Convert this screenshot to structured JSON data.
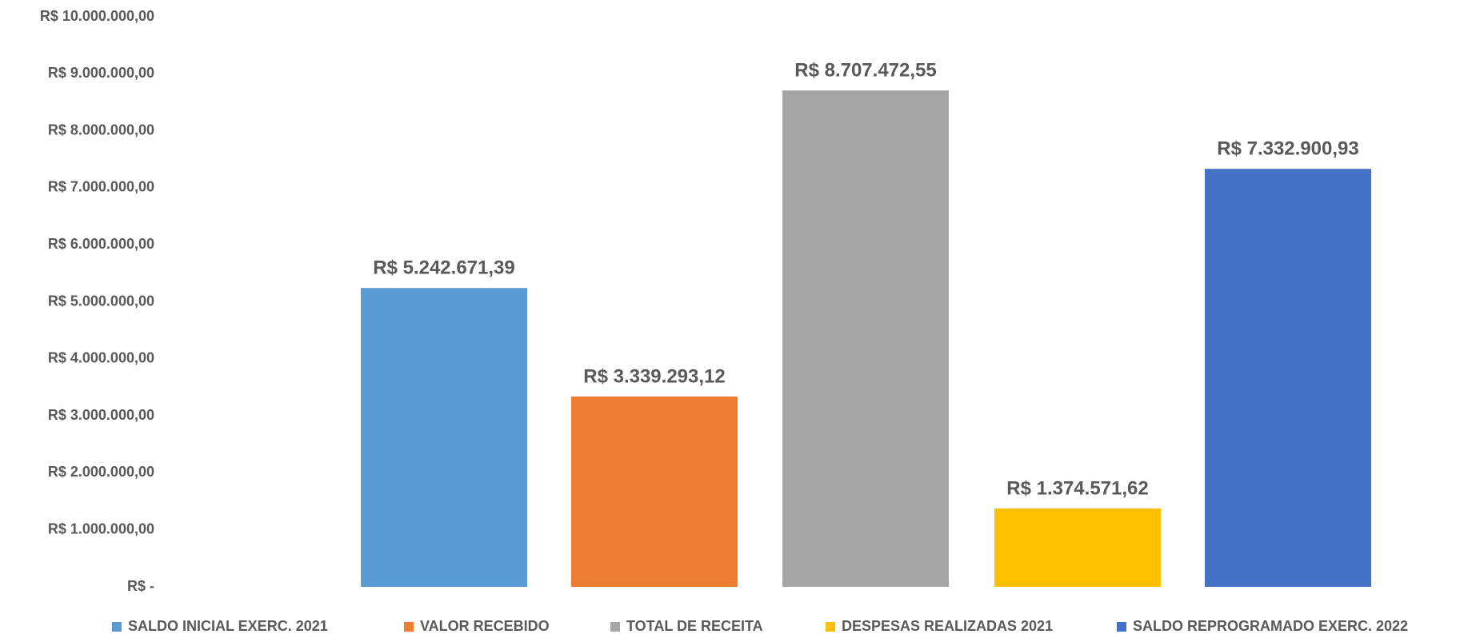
{
  "chart_data": {
    "type": "bar",
    "series": [
      {
        "name": "SALDO INICIAL EXERC. 2021",
        "color": "#5b9bd5",
        "values": [
          5242671.39
        ],
        "value_labels": [
          "R$ 5.242.671,39"
        ]
      },
      {
        "name": "VALOR RECEBIDO",
        "color": "#ed7d31",
        "values": [
          3339293.12
        ],
        "value_labels": [
          "R$ 3.339.293,12"
        ]
      },
      {
        "name": "TOTAL DE RECEITA",
        "color": "#a5a5a5",
        "values": [
          8707472.55
        ],
        "value_labels": [
          "R$ 8.707.472,55"
        ]
      },
      {
        "name": "DESPESAS REALIZADAS 2021",
        "color": "#ffc000",
        "values": [
          1374571.62
        ],
        "value_labels": [
          "R$ 1.374.571,62"
        ]
      },
      {
        "name": "SALDO REPROGRAMADO EXERC. 2022",
        "color": "#4472c4",
        "values": [
          7332900.93
        ],
        "value_labels": [
          "R$ 7.332.900,93"
        ]
      }
    ],
    "ylim": [
      0,
      10000000
    ],
    "yticks": [
      {
        "value": 0,
        "label": "R$ -"
      },
      {
        "value": 1000000,
        "label": "R$ 1.000.000,00"
      },
      {
        "value": 2000000,
        "label": "R$ 2.000.000,00"
      },
      {
        "value": 3000000,
        "label": "R$ 3.000.000,00"
      },
      {
        "value": 4000000,
        "label": "R$ 4.000.000,00"
      },
      {
        "value": 5000000,
        "label": "R$ 5.000.000,00"
      },
      {
        "value": 6000000,
        "label": "R$ 6.000.000,00"
      },
      {
        "value": 7000000,
        "label": "R$ 7.000.000,00"
      },
      {
        "value": 8000000,
        "label": "R$ 8.000.000,00"
      },
      {
        "value": 9000000,
        "label": "R$ 9.000.000,00"
      },
      {
        "value": 10000000,
        "label": "R$ 10.000.000,00"
      }
    ],
    "grid": false,
    "legend": "bottom"
  }
}
